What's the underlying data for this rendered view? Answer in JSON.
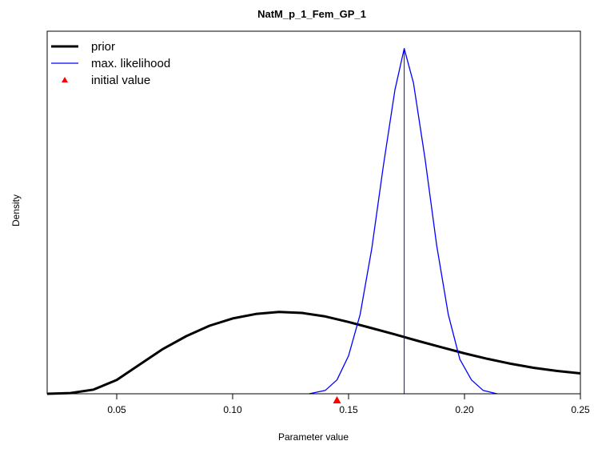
{
  "chart_data": {
    "type": "line",
    "title": "NatM_p_1_Fem_GP_1",
    "xlabel": "Parameter value",
    "ylabel": "Density",
    "xlim": [
      0.02,
      0.25
    ],
    "ylim": [
      0,
      1.05
    ],
    "x_ticks": [
      0.05,
      0.1,
      0.15,
      0.2,
      0.25
    ],
    "x_tick_labels": [
      "0.05",
      "0.10",
      "0.15",
      "0.20",
      "0.25"
    ],
    "legend_position": "top-left",
    "series": [
      {
        "name": "prior",
        "color": "#000000",
        "points": [
          [
            0.02,
            0.0
          ],
          [
            0.03,
            0.002
          ],
          [
            0.04,
            0.012
          ],
          [
            0.05,
            0.04
          ],
          [
            0.06,
            0.085
          ],
          [
            0.07,
            0.13
          ],
          [
            0.08,
            0.167
          ],
          [
            0.09,
            0.197
          ],
          [
            0.1,
            0.218
          ],
          [
            0.11,
            0.231
          ],
          [
            0.12,
            0.237
          ],
          [
            0.13,
            0.234
          ],
          [
            0.14,
            0.224
          ],
          [
            0.15,
            0.208
          ],
          [
            0.16,
            0.19
          ],
          [
            0.17,
            0.172
          ],
          [
            0.18,
            0.153
          ],
          [
            0.19,
            0.135
          ],
          [
            0.2,
            0.117
          ],
          [
            0.21,
            0.101
          ],
          [
            0.22,
            0.087
          ],
          [
            0.23,
            0.075
          ],
          [
            0.24,
            0.066
          ],
          [
            0.25,
            0.059
          ]
        ]
      },
      {
        "name": "max. likelihood",
        "color": "#0000ff",
        "points": [
          [
            0.133,
            0.0
          ],
          [
            0.14,
            0.01
          ],
          [
            0.145,
            0.04
          ],
          [
            0.15,
            0.11
          ],
          [
            0.155,
            0.23
          ],
          [
            0.16,
            0.42
          ],
          [
            0.165,
            0.66
          ],
          [
            0.17,
            0.88
          ],
          [
            0.174,
            1.0
          ],
          [
            0.178,
            0.9
          ],
          [
            0.183,
            0.68
          ],
          [
            0.188,
            0.43
          ],
          [
            0.193,
            0.23
          ],
          [
            0.198,
            0.1
          ],
          [
            0.203,
            0.04
          ],
          [
            0.208,
            0.01
          ],
          [
            0.214,
            0.0
          ]
        ],
        "vertical_line_x": 0.174
      }
    ],
    "markers": [
      {
        "name": "initial value",
        "x": 0.145,
        "y": 0.0,
        "shape": "triangle",
        "color": "#ff0000"
      }
    ]
  }
}
